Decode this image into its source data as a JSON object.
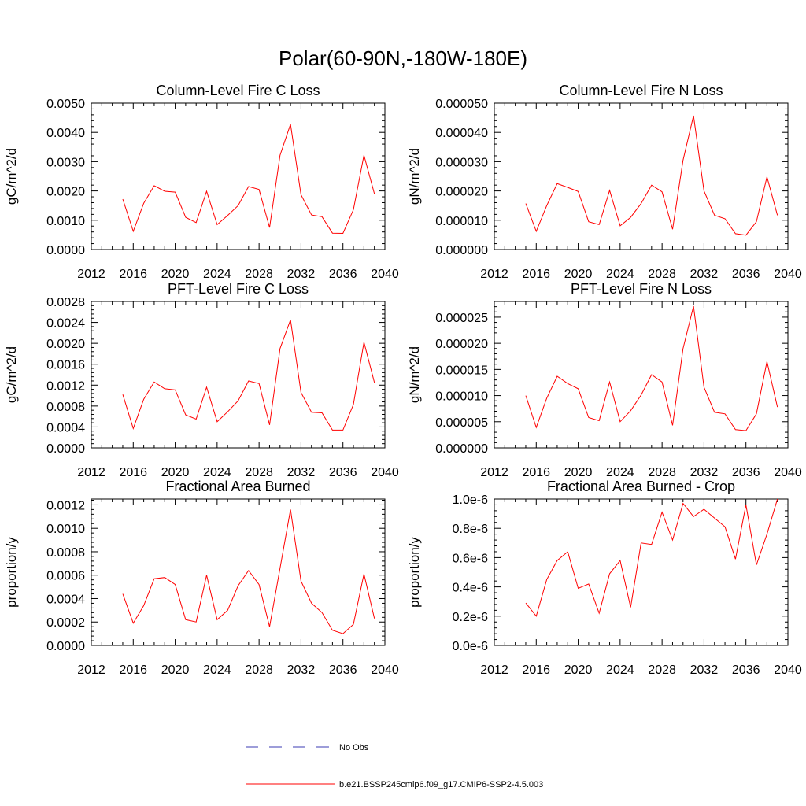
{
  "figure": {
    "title": "Polar(60-90N,-180W-180E)"
  },
  "colors": {
    "series": "#ff0000",
    "obs": "#3b3bb3",
    "axis": "#000000"
  },
  "legend": {
    "obs_label": "No Obs",
    "model_label": "b.e21.BSSP245cmip6.f09_g17.CMIP6-SSP2-4.5.003"
  },
  "chart_data": [
    {
      "type": "line",
      "title": "Column-Level Fire C Loss",
      "xlabel": "",
      "ylabel": "gC/m^2/d",
      "xlim": [
        2012,
        2040
      ],
      "ylim": [
        0,
        0.005
      ],
      "x_ticks": [
        2012,
        2016,
        2020,
        2024,
        2028,
        2032,
        2036,
        2040
      ],
      "x_tick_labels": [
        "2012",
        "2016",
        "2020",
        "2024",
        "2028",
        "2032",
        "2036",
        "2040"
      ],
      "y_ticks": [
        0,
        0.001,
        0.002,
        0.003,
        0.004,
        0.005
      ],
      "y_tick_labels": [
        "0.0000",
        "0.0010",
        "0.0020",
        "0.0030",
        "0.0040",
        "0.0050"
      ],
      "series": [
        {
          "name": "b.e21.BSSP245cmip6.f09_g17.CMIP6-SSP2-4.5.003",
          "x": [
            2015,
            2016,
            2017,
            2018,
            2019,
            2020,
            2021,
            2022,
            2023,
            2024,
            2025,
            2026,
            2027,
            2028,
            2029,
            2030,
            2031,
            2032,
            2033,
            2034,
            2035,
            2036,
            2037,
            2038,
            2039
          ],
          "values": [
            0.00172,
            0.00062,
            0.00158,
            0.00218,
            0.00199,
            0.00196,
            0.0011,
            0.00092,
            0.00199,
            0.00085,
            0.00116,
            0.0015,
            0.00215,
            0.00205,
            0.00075,
            0.00322,
            0.00428,
            0.00187,
            0.00118,
            0.00112,
            0.00056,
            0.00055,
            0.00136,
            0.00322,
            0.0019
          ]
        }
      ]
    },
    {
      "type": "line",
      "title": "Column-Level Fire N Loss",
      "xlabel": "",
      "ylabel": "gN/m^2/d",
      "xlim": [
        2012,
        2040
      ],
      "ylim": [
        0,
        5e-05
      ],
      "x_ticks": [
        2012,
        2016,
        2020,
        2024,
        2028,
        2032,
        2036,
        2040
      ],
      "x_tick_labels": [
        "2012",
        "2016",
        "2020",
        "2024",
        "2028",
        "2032",
        "2036",
        "2040"
      ],
      "y_ticks": [
        0,
        1e-05,
        2e-05,
        3e-05,
        4e-05,
        5e-05
      ],
      "y_tick_labels": [
        "0.000000",
        "0.000010",
        "0.000020",
        "0.000030",
        "0.000040",
        "0.000050"
      ],
      "series": [
        {
          "name": "b.e21.BSSP245cmip6.f09_g17.CMIP6-SSP2-4.5.003",
          "x": [
            2015,
            2016,
            2017,
            2018,
            2019,
            2020,
            2021,
            2022,
            2023,
            2024,
            2025,
            2026,
            2027,
            2028,
            2029,
            2030,
            2031,
            2032,
            2033,
            2034,
            2035,
            2036,
            2037,
            2038,
            2039
          ],
          "values": [
            1.57e-05,
            6.2e-06,
            1.5e-05,
            2.25e-05,
            2.12e-05,
            1.98e-05,
            9.5e-06,
            8.5e-06,
            2.02e-05,
            8.1e-06,
            1.1e-05,
            1.57e-05,
            2.2e-05,
            1.97e-05,
            6.9e-06,
            3.05e-05,
            4.57e-05,
            2e-05,
            1.17e-05,
            1.05e-05,
            5.4e-06,
            4.9e-06,
            9.5e-06,
            2.48e-05,
            1.17e-05
          ]
        }
      ]
    },
    {
      "type": "line",
      "title": "PFT-Level Fire C Loss",
      "xlabel": "",
      "ylabel": "gC/m^2/d",
      "xlim": [
        2012,
        2040
      ],
      "ylim": [
        0,
        0.0028
      ],
      "x_ticks": [
        2012,
        2016,
        2020,
        2024,
        2028,
        2032,
        2036,
        2040
      ],
      "x_tick_labels": [
        "2012",
        "2016",
        "2020",
        "2024",
        "2028",
        "2032",
        "2036",
        "2040"
      ],
      "y_ticks": [
        0,
        0.0004,
        0.0008,
        0.0012,
        0.0016,
        0.002,
        0.0024,
        0.0028
      ],
      "y_tick_labels": [
        "0.0000",
        "0.0004",
        "0.0008",
        "0.0012",
        "0.0016",
        "0.0020",
        "0.0024",
        "0.0028"
      ],
      "series": [
        {
          "name": "b.e21.BSSP245cmip6.f09_g17.CMIP6-SSP2-4.5.003",
          "x": [
            2015,
            2016,
            2017,
            2018,
            2019,
            2020,
            2021,
            2022,
            2023,
            2024,
            2025,
            2026,
            2027,
            2028,
            2029,
            2030,
            2031,
            2032,
            2033,
            2034,
            2035,
            2036,
            2037,
            2038,
            2039
          ],
          "values": [
            0.00102,
            0.00037,
            0.00093,
            0.00126,
            0.00113,
            0.00111,
            0.00063,
            0.00055,
            0.00116,
            0.0005,
            0.00069,
            0.0009,
            0.00128,
            0.00123,
            0.00044,
            0.0019,
            0.00245,
            0.00106,
            0.00068,
            0.00067,
            0.00034,
            0.00034,
            0.00083,
            0.00202,
            0.00125
          ]
        }
      ]
    },
    {
      "type": "line",
      "title": "PFT-Level Fire N Loss",
      "xlabel": "",
      "ylabel": "gN/m^2/d",
      "xlim": [
        2012,
        2040
      ],
      "ylim": [
        0,
        2.8e-05
      ],
      "x_ticks": [
        2012,
        2016,
        2020,
        2024,
        2028,
        2032,
        2036,
        2040
      ],
      "x_tick_labels": [
        "2012",
        "2016",
        "2020",
        "2024",
        "2028",
        "2032",
        "2036",
        "2040"
      ],
      "y_ticks": [
        0,
        5e-06,
        1e-05,
        1.5e-05,
        2e-05,
        2.5e-05
      ],
      "y_tick_labels": [
        "0.000000",
        "0.000005",
        "0.000010",
        "0.000015",
        "0.000020",
        "0.000025"
      ],
      "series": [
        {
          "name": "b.e21.BSSP245cmip6.f09_g17.CMIP6-SSP2-4.5.003",
          "x": [
            2015,
            2016,
            2017,
            2018,
            2019,
            2020,
            2021,
            2022,
            2023,
            2024,
            2025,
            2026,
            2027,
            2028,
            2029,
            2030,
            2031,
            2032,
            2033,
            2034,
            2035,
            2036,
            2037,
            2038,
            2039
          ],
          "values": [
            1e-05,
            3.9e-06,
            9.5e-06,
            1.37e-05,
            1.23e-05,
            1.13e-05,
            5.8e-06,
            5.2e-06,
            1.26e-05,
            5e-06,
            7.1e-06,
            1.01e-05,
            1.4e-05,
            1.26e-05,
            4.3e-06,
            1.9e-05,
            2.71e-05,
            1.16e-05,
            6.8e-06,
            6.5e-06,
            3.5e-06,
            3.3e-06,
            6.5e-06,
            1.65e-05,
            7.8e-06
          ]
        }
      ]
    },
    {
      "type": "line",
      "title": "Fractional Area Burned",
      "xlabel": "",
      "ylabel": "proportion/y",
      "xlim": [
        2012,
        2040
      ],
      "ylim": [
        0,
        0.00125
      ],
      "x_ticks": [
        2012,
        2016,
        2020,
        2024,
        2028,
        2032,
        2036,
        2040
      ],
      "x_tick_labels": [
        "2012",
        "2016",
        "2020",
        "2024",
        "2028",
        "2032",
        "2036",
        "2040"
      ],
      "y_ticks": [
        0,
        0.0002,
        0.0004,
        0.0006,
        0.0008,
        0.001,
        0.0012
      ],
      "y_tick_labels": [
        "0.0000",
        "0.0002",
        "0.0004",
        "0.0006",
        "0.0008",
        "0.0010",
        "0.0012"
      ],
      "series": [
        {
          "name": "b.e21.BSSP245cmip6.f09_g17.CMIP6-SSP2-4.5.003",
          "x": [
            2015,
            2016,
            2017,
            2018,
            2019,
            2020,
            2021,
            2022,
            2023,
            2024,
            2025,
            2026,
            2027,
            2028,
            2029,
            2030,
            2031,
            2032,
            2033,
            2034,
            2035,
            2036,
            2037,
            2038,
            2039
          ],
          "values": [
            0.00044,
            0.00019,
            0.00034,
            0.00057,
            0.00058,
            0.00052,
            0.00022,
            0.0002,
            0.0006,
            0.00022,
            0.0003,
            0.00051,
            0.00064,
            0.00052,
            0.00016,
            0.00066,
            0.00116,
            0.00055,
            0.00036,
            0.00028,
            0.00013,
            0.0001,
            0.00018,
            0.00061,
            0.00023
          ]
        }
      ]
    },
    {
      "type": "line",
      "title": "Fractional Area Burned - Crop",
      "xlabel": "",
      "ylabel": "proportion/y",
      "xlim": [
        2012,
        2040
      ],
      "ylim": [
        0,
        1e-06
      ],
      "x_ticks": [
        2012,
        2016,
        2020,
        2024,
        2028,
        2032,
        2036,
        2040
      ],
      "x_tick_labels": [
        "2012",
        "2016",
        "2020",
        "2024",
        "2028",
        "2032",
        "2036",
        "2040"
      ],
      "y_ticks": [
        0,
        2e-07,
        4e-07,
        6e-07,
        8e-07,
        1e-06
      ],
      "y_tick_labels": [
        "0.0e-6",
        "0.2e-6",
        "0.4e-6",
        "0.6e-6",
        "0.8e-6",
        "1.0e-6"
      ],
      "series": [
        {
          "name": "b.e21.BSSP245cmip6.f09_g17.CMIP6-SSP2-4.5.003",
          "x": [
            2015,
            2016,
            2017,
            2018,
            2019,
            2020,
            2021,
            2022,
            2023,
            2024,
            2025,
            2026,
            2027,
            2028,
            2029,
            2030,
            2031,
            2032,
            2033,
            2034,
            2035,
            2036,
            2037,
            2038,
            2039
          ],
          "values": [
            2.9e-07,
            2e-07,
            4.5e-07,
            5.8e-07,
            6.4e-07,
            3.9e-07,
            4.2e-07,
            2.2e-07,
            4.9e-07,
            5.8e-07,
            2.6e-07,
            7e-07,
            6.9e-07,
            9.1e-07,
            7.2e-07,
            9.7e-07,
            8.8e-07,
            9.3e-07,
            8.7e-07,
            8.1e-07,
            5.9e-07,
            9.6e-07,
            5.5e-07,
            7.6e-07,
            1e-06
          ]
        }
      ]
    }
  ]
}
